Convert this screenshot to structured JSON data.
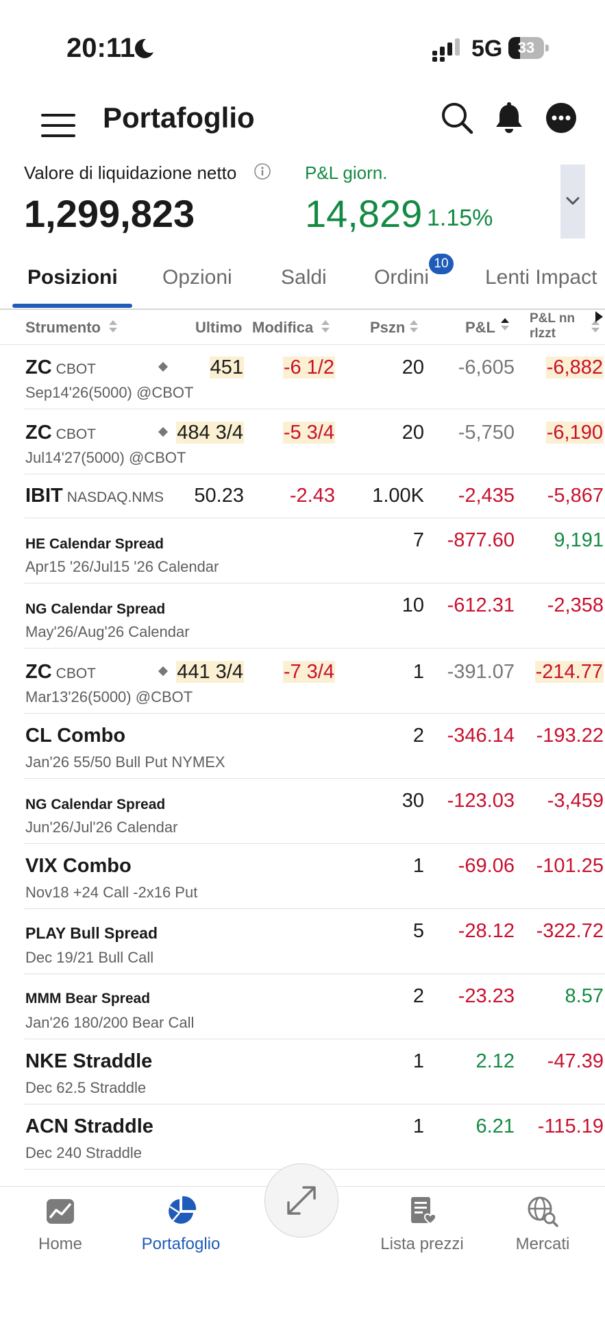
{
  "status_bar": {
    "time": "20:11",
    "network": "5G",
    "battery_percent": 33,
    "battery_text": "33"
  },
  "header": {
    "title": "Portafoglio"
  },
  "summary": {
    "net_liq_label": "Valore di liquidazione netto",
    "net_liq_value": "1,299,823",
    "pl_label": "P&L giorn.",
    "pl_value": "14,829",
    "pl_percent": "1.15%"
  },
  "tabs": [
    {
      "label": "Posizioni",
      "active": true
    },
    {
      "label": "Opzioni",
      "active": false
    },
    {
      "label": "Saldi",
      "active": false
    },
    {
      "label": "Ordini",
      "active": false,
      "badge": "10"
    },
    {
      "label": "Lenti Impact",
      "active": false
    }
  ],
  "table": {
    "columns": {
      "instrument": "Strumento",
      "last": "Ultimo",
      "change": "Modifica",
      "position": "Pszn",
      "pl": "P&L",
      "unrealized_line1": "P&L nn",
      "unrealized_line2": "rlzzt"
    },
    "rows": [
      {
        "symbol": "ZC",
        "exchange": "CBOT",
        "sub": "Sep14'26(5000) @CBOT",
        "last": "451",
        "change": "-6 1/2",
        "position": "20",
        "pl": "-6,605",
        "unrealized": "-6,882"
      },
      {
        "symbol": "ZC",
        "exchange": "CBOT",
        "sub": "Jul14'27(5000) @CBOT",
        "last": "484 3/4",
        "change": "-5 3/4",
        "position": "20",
        "pl": "-5,750",
        "unrealized": "-6,190"
      },
      {
        "symbol": "IBIT",
        "exchange": "NASDAQ.NMS",
        "sub": "",
        "last": "50.23",
        "change": "-2.43",
        "position": "1.00K",
        "pl": "-2,435",
        "unrealized": "-5,867"
      },
      {
        "symbol": "HE Calendar Spread",
        "exchange": "",
        "sub": "Apr15 '26/Jul15 '26 Calendar",
        "last": "",
        "change": "",
        "position": "7",
        "pl": "-877.60",
        "unrealized": "9,191"
      },
      {
        "symbol": "NG Calendar Spread",
        "exchange": "",
        "sub": "May'26/Aug'26 Calendar",
        "last": "",
        "change": "",
        "position": "10",
        "pl": "-612.31",
        "unrealized": "-2,358"
      },
      {
        "symbol": "ZC",
        "exchange": "CBOT",
        "sub": "Mar13'26(5000) @CBOT",
        "last": "441 3/4",
        "change": "-7 3/4",
        "position": "1",
        "pl": "-391.07",
        "unrealized": "-214.77"
      },
      {
        "symbol": "CL Combo",
        "exchange": "",
        "sub": "Jan'26 55/50 Bull Put NYMEX",
        "last": "",
        "change": "",
        "position": "2",
        "pl": "-346.14",
        "unrealized": "-193.22"
      },
      {
        "symbol": "NG Calendar Spread",
        "exchange": "",
        "sub": "Jun'26/Jul'26 Calendar",
        "last": "",
        "change": "",
        "position": "30",
        "pl": "-123.03",
        "unrealized": "-3,459"
      },
      {
        "symbol": "VIX Combo",
        "exchange": "",
        "sub": "Nov18  +24 Call  -2x16 Put",
        "last": "",
        "change": "",
        "position": "1",
        "pl": "-69.06",
        "unrealized": "-101.25"
      },
      {
        "symbol": "PLAY Bull Spread",
        "exchange": "",
        "sub": "Dec 19/21 Bull Call",
        "last": "",
        "change": "",
        "position": "5",
        "pl": "-28.12",
        "unrealized": "-322.72"
      },
      {
        "symbol": "MMM Bear Spread",
        "exchange": "",
        "sub": "Jan'26 180/200 Bear Call",
        "last": "",
        "change": "",
        "position": "2",
        "pl": "-23.23",
        "unrealized": "8.57"
      },
      {
        "symbol": "NKE Straddle",
        "exchange": "",
        "sub": "Dec 62.5 Straddle",
        "last": "",
        "change": "",
        "position": "1",
        "pl": "2.12",
        "unrealized": "-47.39"
      },
      {
        "symbol": "ACN Straddle",
        "exchange": "",
        "sub": "Dec 240 Straddle",
        "last": "",
        "change": "",
        "position": "1",
        "pl": "6.21",
        "unrealized": "-115.19"
      }
    ]
  },
  "bottom_nav": [
    {
      "label": "Home",
      "icon": "chart-icon",
      "active": false
    },
    {
      "label": "Portafoglio",
      "icon": "pie-chart-icon",
      "active": true
    },
    {
      "label": "Lista prezzi",
      "icon": "watchlist-icon",
      "active": false
    },
    {
      "label": "Mercati",
      "icon": "globe-search-icon",
      "active": false
    }
  ],
  "colors": {
    "accent": "#1f5bb8",
    "positive": "#138a42",
    "negative": "#c8102e",
    "highlight": "#fbf0d2"
  }
}
